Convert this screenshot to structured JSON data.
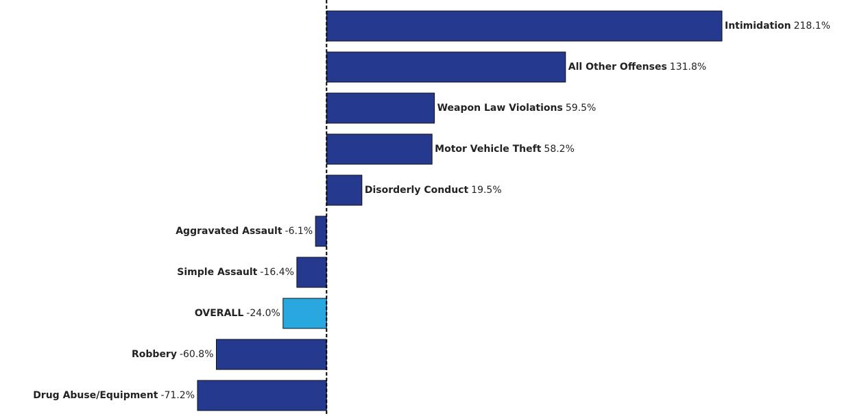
{
  "chart_data": {
    "type": "bar",
    "orientation": "horizontal",
    "categories": [
      "Intimidation",
      "All Other Offenses",
      "Weapon Law Violations",
      "Motor Vehicle Theft",
      "Disorderly Conduct",
      "Aggravated Assault",
      "Simple Assault",
      "OVERALL",
      "Robbery",
      "Drug Abuse/Equipment"
    ],
    "values": [
      218.1,
      131.8,
      59.5,
      58.2,
      19.5,
      -6.1,
      -16.4,
      -24.0,
      -60.8,
      -71.2
    ],
    "value_labels": [
      "218.1%",
      "131.8%",
      "59.5%",
      "58.2%",
      "19.5%",
      "-6.1%",
      "-16.4%",
      "-24.0%",
      "-60.8%",
      "-71.2%"
    ],
    "colors": [
      "#253a8f",
      "#253a8f",
      "#253a8f",
      "#253a8f",
      "#253a8f",
      "#253a8f",
      "#253a8f",
      "#29a8e0",
      "#253a8f",
      "#253a8f"
    ]
  }
}
